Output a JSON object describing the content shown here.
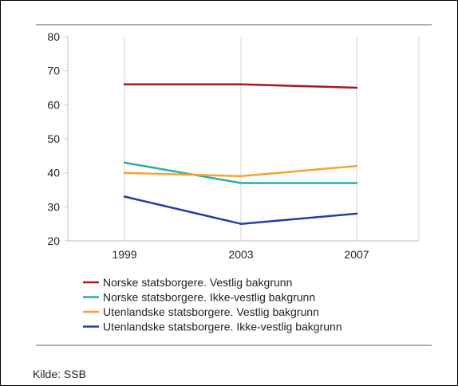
{
  "source_note": "Kilde: SSB",
  "chart_data": {
    "type": "line",
    "title": "",
    "xlabel": "",
    "ylabel": "",
    "categories": [
      "1999",
      "2003",
      "2007"
    ],
    "ylim": [
      20,
      80
    ],
    "yticks": [
      20,
      30,
      40,
      50,
      60,
      70,
      80
    ],
    "grid": "vertical",
    "legend_position": "bottom",
    "series": [
      {
        "name": "Norske statsborgere. Vestlig bakgrunn",
        "color": "#a31b1b",
        "values": [
          66,
          66,
          65
        ]
      },
      {
        "name": "Norske statsborgere. Ikke-vestlig bakgrunn",
        "color": "#2aada5",
        "values": [
          43,
          37,
          37
        ]
      },
      {
        "name": "Utenlandske statsborgere. Vestlig bakgrunn",
        "color": "#f9a231",
        "values": [
          40,
          39,
          42
        ]
      },
      {
        "name": "Utenlandske statsborgere. Ikke-vestlig bakgrunn",
        "color": "#1f41a5",
        "values": [
          33,
          25,
          28
        ]
      }
    ]
  }
}
